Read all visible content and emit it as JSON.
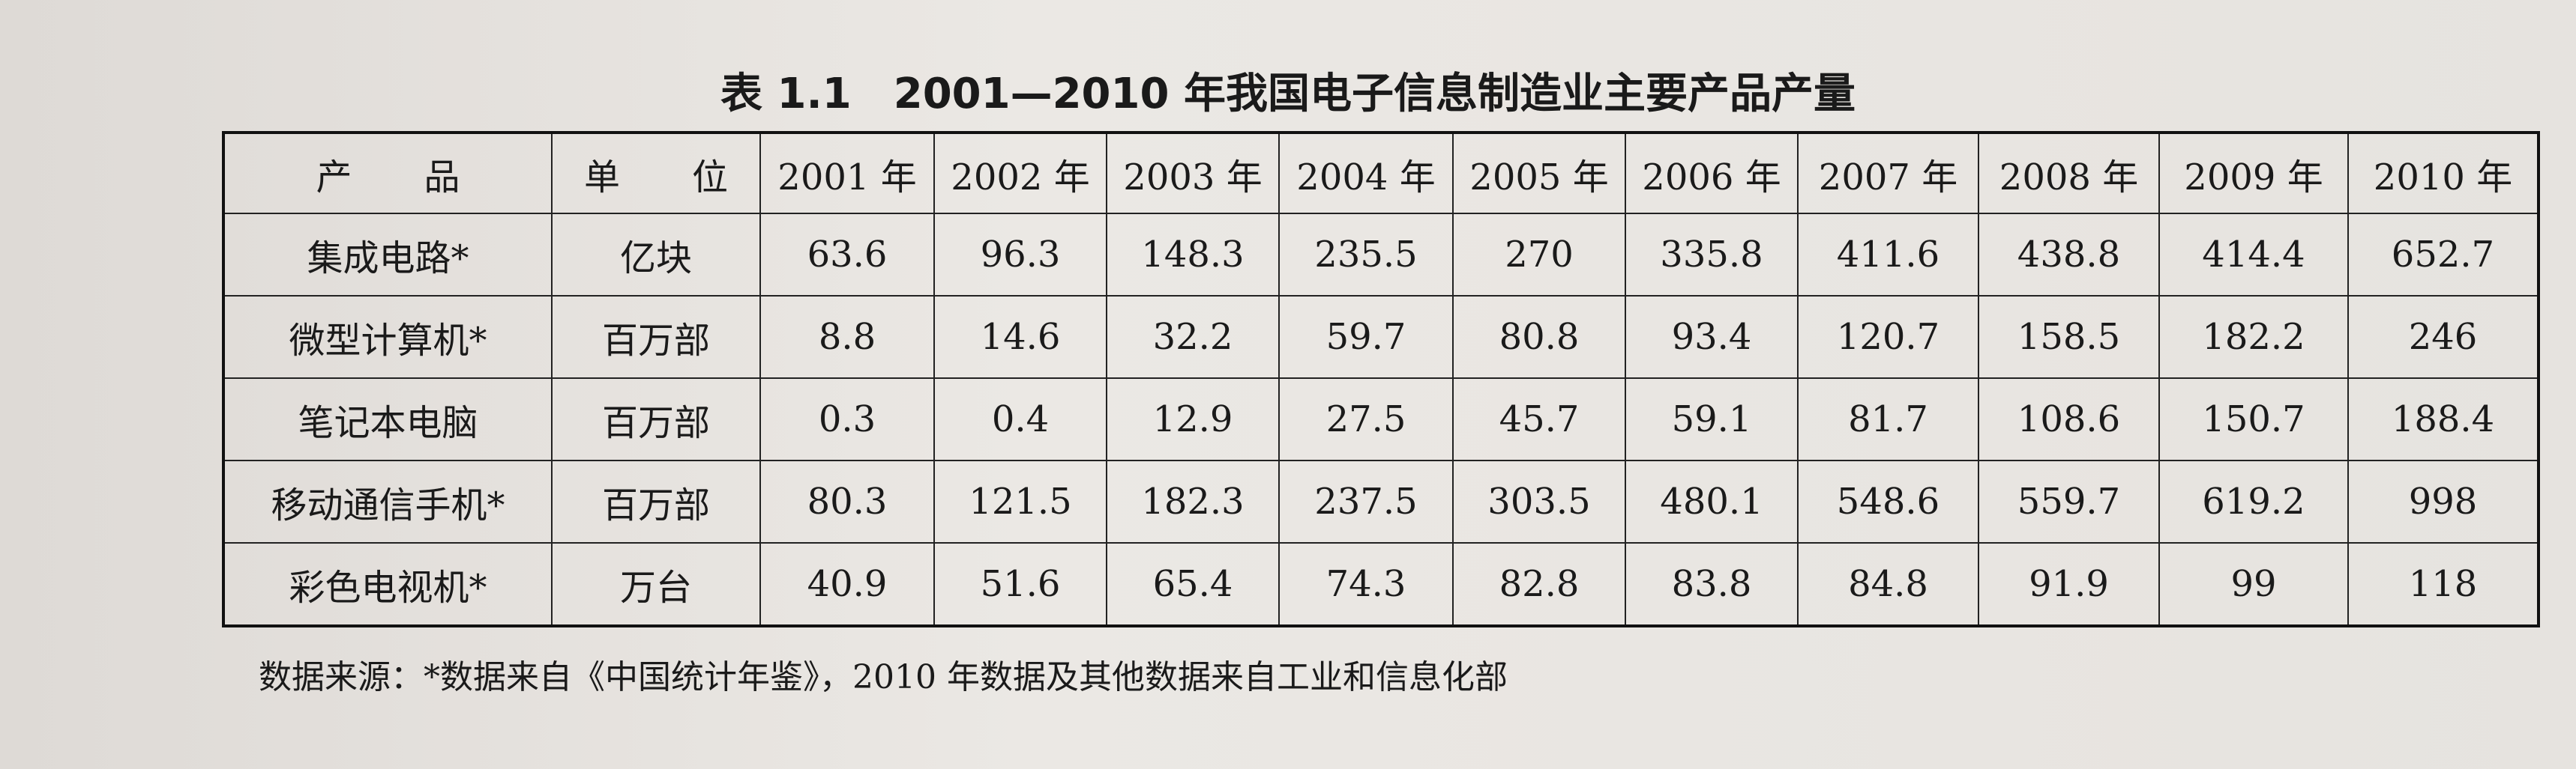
{
  "title": "表 1.1　2001—2010 年我国电子信息制造业主要产品产量",
  "table": {
    "header": [
      "产　　品",
      "单　　位",
      "2001 年",
      "2002 年",
      "2003 年",
      "2004 年",
      "2005 年",
      "2006 年",
      "2007 年",
      "2008 年",
      "2009 年",
      "2010 年"
    ],
    "rows": [
      [
        "集成电路*",
        "亿块",
        63.6,
        96.3,
        148.3,
        235.5,
        270,
        335.8,
        411.6,
        438.8,
        414.4,
        652.7
      ],
      [
        "微型计算机*",
        "百万部",
        8.8,
        14.6,
        32.2,
        59.7,
        80.8,
        93.4,
        120.7,
        158.5,
        182.2,
        246
      ],
      [
        "笔记本电脑",
        "百万部",
        0.3,
        0.4,
        12.9,
        27.5,
        45.7,
        59.1,
        81.7,
        108.6,
        150.7,
        188.4
      ],
      [
        "移动通信手机*",
        "百万部",
        80.3,
        121.5,
        182.3,
        237.5,
        303.5,
        480.1,
        548.6,
        559.7,
        619.2,
        998
      ],
      [
        "彩色电视机*",
        "万台",
        40.9,
        51.6,
        65.4,
        74.3,
        82.8,
        83.8,
        84.8,
        91.9,
        99,
        118
      ]
    ]
  },
  "note": "数据来源：*数据来自《中国统计年鉴》，2010 年数据及其他数据来自工业和信息化部"
}
